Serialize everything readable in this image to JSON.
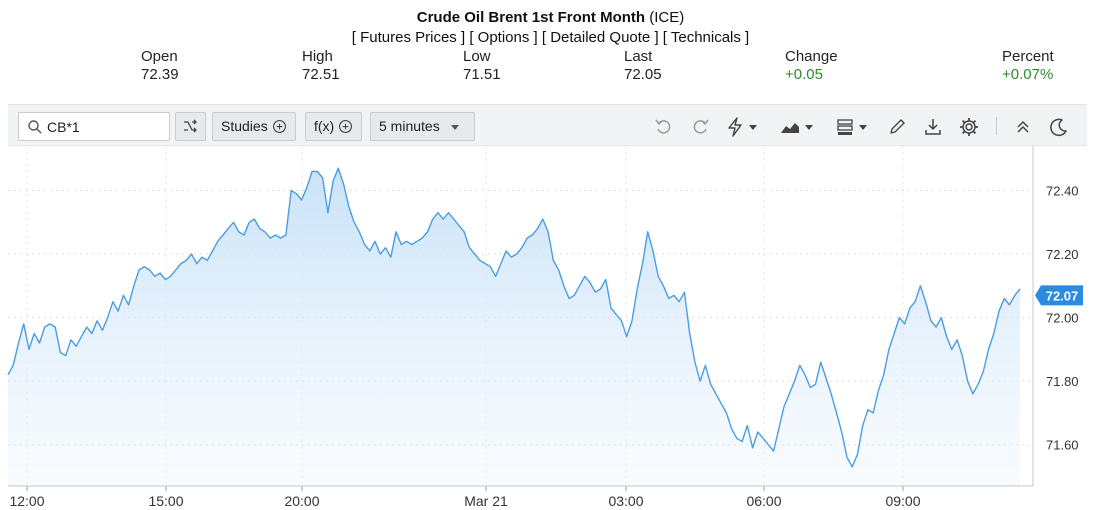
{
  "header": {
    "title": "Crude Oil Brent 1st Front Month",
    "exchange": "(ICE)",
    "links": [
      "[ Futures Prices ]",
      "[ Options ]",
      "[ Detailed Quote ]",
      "[ Technicals ]"
    ]
  },
  "stats": {
    "open_label": "Open",
    "open_value": "72.39",
    "high_label": "High",
    "high_value": "72.51",
    "low_label": "Low",
    "low_value": "71.51",
    "last_label": "Last",
    "last_value": "72.05",
    "change_label": "Change",
    "change_value": "+0.05",
    "percent_label": "Percent",
    "percent_value": "+0.07%"
  },
  "toolbar": {
    "symbol": "CB*1",
    "studies_label": "Studies",
    "fx_label": "f(x)",
    "interval_label": "5 minutes"
  },
  "colors": {
    "line": "#4a9de0",
    "fill_top": "#c6e0f8",
    "positive": "#2e8b2e",
    "last_badge": "#2a8be0"
  },
  "chart_data": {
    "type": "area",
    "x_tick_labels": [
      "12:00",
      "15:00",
      "20:00",
      "Mar 21",
      "03:00",
      "06:00",
      "09:00"
    ],
    "y_tick_labels": [
      "72.40",
      "72.20",
      "72.00",
      "71.80",
      "71.60"
    ],
    "ylim": [
      71.47,
      72.54
    ],
    "last_price_label": "72.07",
    "grid": true,
    "values": [
      71.82,
      71.85,
      71.92,
      71.98,
      71.9,
      71.95,
      71.92,
      71.97,
      71.98,
      71.97,
      71.89,
      71.88,
      71.93,
      71.91,
      71.94,
      71.97,
      71.95,
      71.99,
      71.96,
      72.0,
      72.05,
      72.02,
      72.07,
      72.04,
      72.1,
      72.15,
      72.16,
      72.15,
      72.13,
      72.14,
      72.12,
      72.13,
      72.15,
      72.17,
      72.18,
      72.2,
      72.17,
      72.19,
      72.18,
      72.21,
      72.24,
      72.26,
      72.28,
      72.3,
      72.27,
      72.26,
      72.3,
      72.31,
      72.28,
      72.27,
      72.25,
      72.26,
      72.25,
      72.26,
      72.4,
      72.39,
      72.37,
      72.41,
      72.46,
      72.46,
      72.44,
      72.33,
      72.43,
      72.47,
      72.42,
      72.35,
      72.3,
      72.27,
      72.23,
      72.21,
      72.24,
      72.2,
      72.22,
      72.19,
      72.27,
      72.23,
      72.24,
      72.23,
      72.24,
      72.25,
      72.27,
      72.31,
      72.33,
      72.31,
      72.33,
      72.31,
      72.29,
      72.27,
      72.22,
      72.2,
      72.18,
      72.17,
      72.16,
      72.13,
      72.17,
      72.21,
      72.19,
      72.2,
      72.22,
      72.25,
      72.26,
      72.28,
      72.31,
      72.27,
      72.18,
      72.15,
      72.1,
      72.06,
      72.07,
      72.1,
      72.13,
      72.11,
      72.08,
      72.09,
      72.12,
      72.03,
      72.01,
      71.99,
      71.94,
      71.99,
      72.09,
      72.17,
      72.27,
      72.21,
      72.13,
      72.1,
      72.06,
      72.07,
      72.05,
      72.08,
      71.95,
      71.86,
      71.8,
      71.85,
      71.79,
      71.76,
      71.73,
      71.7,
      71.65,
      71.62,
      71.61,
      71.66,
      71.59,
      71.64,
      71.62,
      71.6,
      71.58,
      71.65,
      71.72,
      71.76,
      71.8,
      71.85,
      71.82,
      71.78,
      71.79,
      71.86,
      71.81,
      71.76,
      71.7,
      71.64,
      71.56,
      71.53,
      71.57,
      71.66,
      71.71,
      71.7,
      71.77,
      71.82,
      71.9,
      71.95,
      72.0,
      71.98,
      72.03,
      72.05,
      72.1,
      72.05,
      71.99,
      71.97,
      72.0,
      71.94,
      71.9,
      71.93,
      71.88,
      71.8,
      71.76,
      71.79,
      71.83,
      71.9,
      71.95,
      72.02,
      72.06,
      72.04,
      72.07,
      72.09
    ]
  }
}
